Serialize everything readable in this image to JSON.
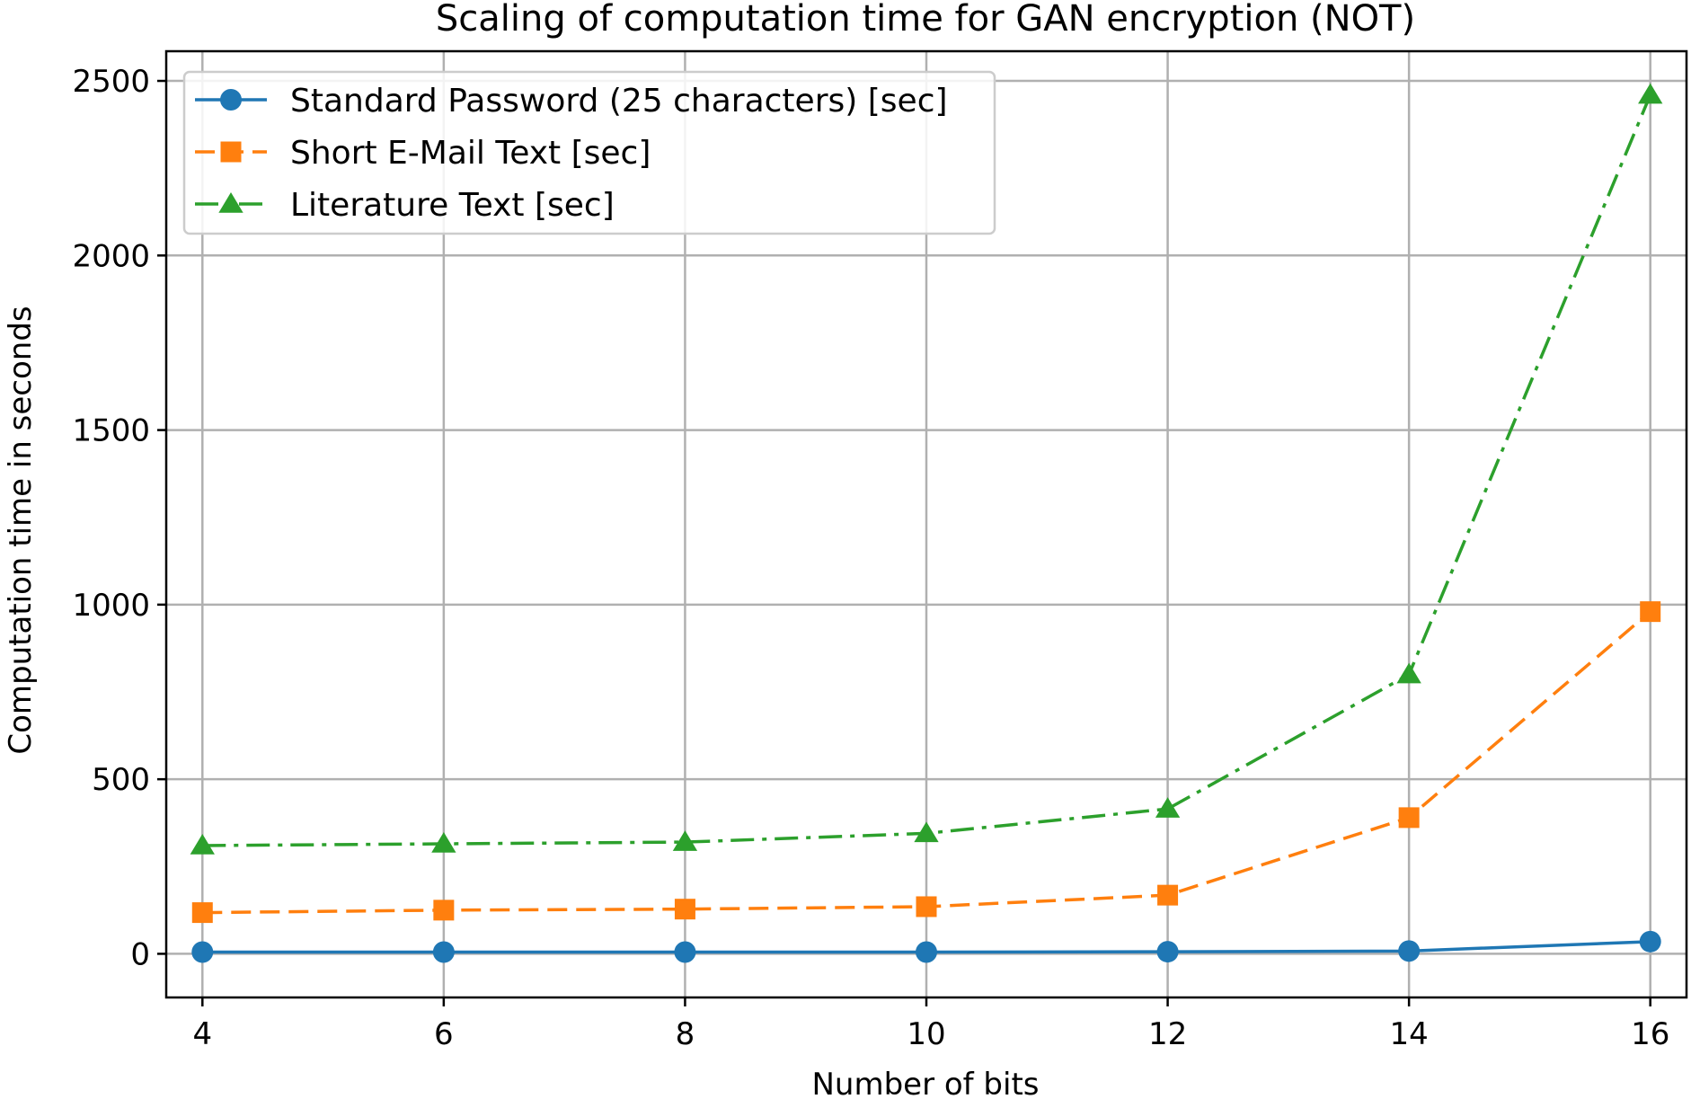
{
  "chart_data": {
    "type": "line",
    "title": "Scaling of computation time for GAN encryption (NOT)",
    "xlabel": "Number of bits",
    "ylabel": "Computation time in seconds",
    "x": [
      4,
      6,
      8,
      10,
      12,
      14,
      16
    ],
    "xticks": [
      "4",
      "6",
      "8",
      "10",
      "12",
      "14",
      "16"
    ],
    "yticks": [
      "0",
      "500",
      "1000",
      "1500",
      "2000",
      "2500"
    ],
    "xlim": [
      3.7,
      16.3
    ],
    "ylim": [
      -125,
      2585
    ],
    "grid": true,
    "legend_position": "top-left",
    "series": [
      {
        "name": "Standard Password (25 characters) [sec]",
        "values": [
          5,
          5,
          5,
          5,
          6,
          8,
          35
        ],
        "color": "#1f77b4",
        "marker": "circle",
        "line_style": "solid"
      },
      {
        "name": "Short E-Mail Text [sec]",
        "values": [
          118,
          125,
          128,
          135,
          168,
          390,
          980
        ],
        "color": "#ff7f0e",
        "marker": "square",
        "line_style": "dashed"
      },
      {
        "name": "Literature Text [sec]",
        "values": [
          310,
          315,
          320,
          345,
          415,
          800,
          2460
        ],
        "color": "#2ca02c",
        "marker": "triangle",
        "line_style": "dashdot"
      }
    ]
  }
}
